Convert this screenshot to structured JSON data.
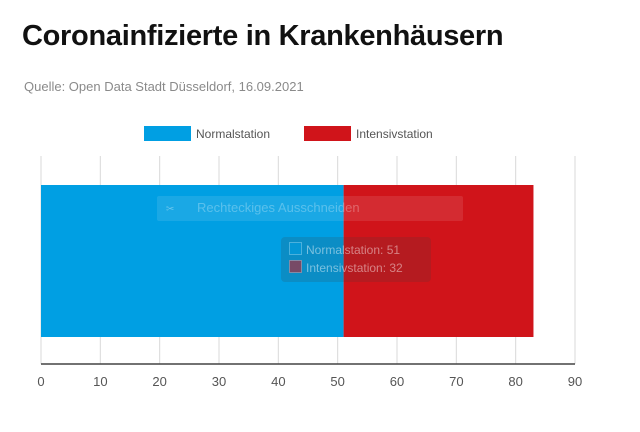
{
  "page": {
    "title": "Coronainfizierte in Krankenhäusern",
    "source": "Quelle: Open Data Stadt Düsseldorf, 16.09.2021"
  },
  "overlay": {
    "snip_label": "Rechteckiges Ausschneiden",
    "snip_icon": "scissors-icon"
  },
  "tooltip": {
    "rows": [
      {
        "label": "Normalstation: 51",
        "color": "#009FE3"
      },
      {
        "label": "Intensivstation: 32",
        "color": "#D0141A"
      }
    ]
  },
  "chart_data": {
    "type": "bar",
    "orientation": "horizontal",
    "stacked": true,
    "categories": [
      ""
    ],
    "series": [
      {
        "name": "Normalstation",
        "values": [
          51
        ],
        "color": "#009FE3"
      },
      {
        "name": "Intensivstation",
        "values": [
          32
        ],
        "color": "#D0141A"
      }
    ],
    "xlim": [
      0,
      90
    ],
    "xticks": [
      0,
      10,
      20,
      30,
      40,
      50,
      60,
      70,
      80,
      90
    ],
    "grid": true,
    "legend": "top"
  }
}
